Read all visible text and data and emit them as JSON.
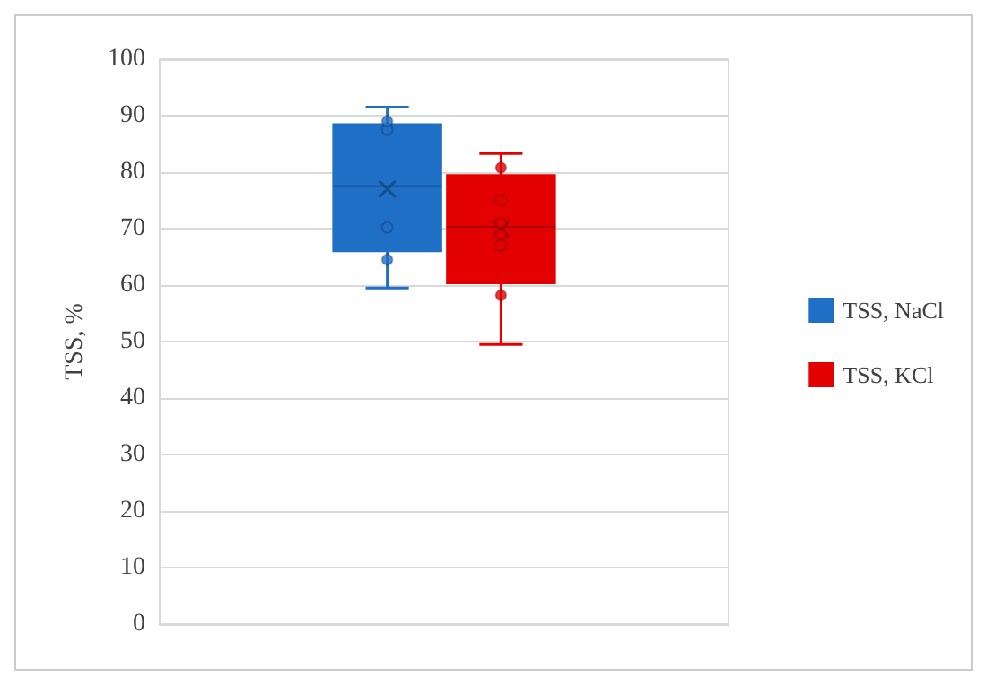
{
  "chart_data": {
    "type": "box",
    "ylabel": "TSS, %",
    "categories": [
      null
    ],
    "ylim": [
      0,
      100
    ],
    "yticks": [
      0,
      10,
      20,
      30,
      40,
      50,
      60,
      70,
      80,
      90,
      100
    ],
    "grid": "y",
    "legend": "right",
    "marker": "circle",
    "series": [
      {
        "name": "TSS, NaCl",
        "color": "#1f6fc6",
        "boxes": [
          {
            "low": 59.5,
            "q1": 66,
            "median": 77.5,
            "q3": 88.5,
            "high": 91.5,
            "mean": 77
          }
        ]
      },
      {
        "name": "TSS, KCl",
        "color": "#e30000",
        "boxes": [
          {
            "low": 49.5,
            "q1": 60.3,
            "median": 70.3,
            "q3": 79.5,
            "high": 83.3,
            "mean": 70
          }
        ]
      },
      {
        "type": "scatter",
        "color": "#1f6fc6",
        "x": [
          null,
          null,
          null,
          null
        ],
        "values": [
          64.5,
          70.2,
          87.5,
          89
        ]
      },
      {
        "type": "scatter",
        "color": "#e30000",
        "x": [
          null,
          null,
          null,
          null,
          null,
          null
        ],
        "values": [
          58.2,
          67,
          69,
          71,
          75,
          80.8
        ]
      }
    ]
  }
}
